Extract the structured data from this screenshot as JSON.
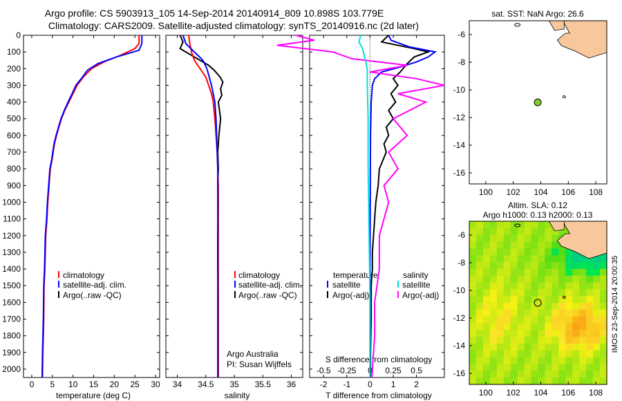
{
  "header": {
    "line1": "Argo profile: CS 5903913_105 14-Sep-2014 20140914_809 10.898S 103.779E",
    "line2": "Climatology: CARS2009. Satellite-adjusted climatology: synTS_20140916.nc (2d later)"
  },
  "colors": {
    "clim": "#ff0000",
    "sat": "#0000ff",
    "argo": "#000000",
    "sal_sat": "#00e0e0",
    "sal_argo": "#ff00ff",
    "land": "#f8c89c",
    "marker": "#7fd12a"
  },
  "chart_data": [
    {
      "type": "line",
      "id": "temperature",
      "xlabel": "temperature (deg C)",
      "ylabel": "",
      "xlim": [
        -2,
        31
      ],
      "ylim": [
        2050,
        0
      ],
      "xticks": [
        "0",
        "5",
        "10",
        "15",
        "20",
        "25",
        "30"
      ],
      "yticks": [
        "0",
        "100",
        "200",
        "300",
        "400",
        "500",
        "600",
        "700",
        "800",
        "900",
        "1000",
        "1100",
        "1200",
        "1300",
        "1400",
        "1500",
        "1600",
        "1700",
        "1800",
        "1900",
        "2000"
      ],
      "legend": [
        "climatology",
        "satellite-adj. clim.",
        "Argo(..raw -QC)"
      ],
      "series": [
        {
          "name": "climatology",
          "color": "#ff0000",
          "x": [
            26.0,
            26.0,
            25.0,
            21.5,
            17.5,
            14.5,
            12.5,
            11.0,
            10.0,
            9.0,
            8.0,
            7.2,
            6.6,
            6.0,
            5.5,
            5.2,
            4.9,
            4.5,
            4.2,
            3.9,
            3.7,
            3.4,
            3.2,
            3.0,
            2.9,
            2.8,
            2.7,
            2.6
          ],
          "y": [
            0,
            50,
            80,
            120,
            160,
            200,
            250,
            300,
            350,
            400,
            450,
            500,
            550,
            600,
            650,
            700,
            750,
            800,
            900,
            1000,
            1100,
            1200,
            1400,
            1500,
            1700,
            1800,
            1900,
            2050
          ]
        },
        {
          "name": "satellite-adj. clim.",
          "color": "#0000ff",
          "x": [
            26.7,
            26.7,
            26.0,
            20.5,
            16.0,
            13.5,
            12.0,
            10.7,
            9.8,
            8.8,
            7.9,
            7.1,
            6.5,
            5.9,
            5.4,
            5.1,
            4.8,
            4.4,
            4.1,
            3.8,
            3.6,
            3.3,
            3.1,
            2.9,
            2.8,
            2.7,
            2.6,
            2.5
          ],
          "y": [
            0,
            50,
            90,
            130,
            170,
            210,
            260,
            300,
            350,
            400,
            450,
            500,
            550,
            600,
            650,
            700,
            750,
            800,
            900,
            1000,
            1100,
            1200,
            1400,
            1500,
            1700,
            1800,
            1900,
            2050
          ]
        }
      ]
    },
    {
      "type": "line",
      "id": "salinity",
      "xlabel": "salinity",
      "xlim": [
        33.8,
        36.2
      ],
      "ylim": [
        2050,
        0
      ],
      "xticks": [
        "34",
        "34.5",
        "35",
        "35.5",
        "36"
      ],
      "legend": [
        "climatology",
        "satellite-adj. clim.",
        "Argo(..raw -QC)"
      ],
      "annotations": [
        "Argo Australia",
        "PI: Susan Wijffels"
      ],
      "series": [
        {
          "name": "climatology",
          "color": "#ff0000",
          "x": [
            34.2,
            34.22,
            34.25,
            34.3,
            34.4,
            34.5,
            34.55,
            34.6,
            34.63,
            34.66,
            34.68,
            34.7,
            34.71,
            34.72,
            34.72,
            34.72,
            34.72,
            34.72,
            34.72,
            34.72
          ],
          "y": [
            0,
            50,
            100,
            150,
            200,
            250,
            300,
            350,
            400,
            500,
            600,
            700,
            800,
            900,
            1000,
            1200,
            1400,
            1600,
            1800,
            2050
          ]
        },
        {
          "name": "satellite-adj. clim.",
          "color": "#0000ff",
          "x": [
            34.1,
            34.15,
            34.3,
            34.45,
            34.52,
            34.56,
            34.6,
            34.63,
            34.66,
            34.68,
            34.69,
            34.7,
            34.71,
            34.71,
            34.71,
            34.71,
            34.71,
            34.71,
            34.71,
            34.71
          ],
          "y": [
            0,
            50,
            100,
            150,
            200,
            250,
            300,
            350,
            400,
            500,
            600,
            700,
            800,
            900,
            1000,
            1200,
            1400,
            1600,
            1800,
            2050
          ]
        },
        {
          "name": "Argo(..raw -QC)",
          "color": "#000000",
          "x": [
            34.05,
            34.1,
            34.05,
            34.25,
            34.4,
            34.55,
            34.65,
            34.75,
            34.8,
            34.76,
            34.78,
            34.72,
            34.76,
            34.73,
            34.71,
            34.72,
            34.71,
            34.72,
            34.71,
            34.71,
            34.72,
            34.72,
            34.72
          ],
          "y": [
            0,
            40,
            80,
            120,
            150,
            180,
            210,
            250,
            280,
            320,
            360,
            400,
            500,
            600,
            700,
            800,
            900,
            1000,
            1200,
            1400,
            1600,
            1800,
            2050
          ]
        }
      ]
    },
    {
      "type": "line",
      "id": "difference",
      "xlabel": "T difference from climatology",
      "xlabel_top": "S difference from climatology",
      "xlim": [
        -2.6,
        3.2
      ],
      "ylim": [
        2050,
        0
      ],
      "xticks": [
        "-2",
        "-1",
        "0",
        "1",
        "2"
      ],
      "xticks_top": [
        "-0.5",
        "-0.25",
        "0",
        "0.25",
        "0.5"
      ],
      "legend_left_title": "temperature",
      "legend_right_title": "salinity",
      "legend": [
        "satellite",
        "Argo(-adj)",
        "satellite",
        "Argo(-adj)"
      ],
      "series": [
        {
          "name": "satellite",
          "color": "#0000ff",
          "x": [
            0.8,
            0.9,
            1.7,
            2.8,
            2.5,
            2.0,
            1.3,
            0.5,
            0.2,
            0.1,
            0.05,
            0.02,
            0.01,
            0,
            0
          ],
          "y": [
            0,
            30,
            70,
            100,
            130,
            160,
            190,
            220,
            260,
            300,
            400,
            600,
            900,
            1400,
            2050
          ]
        },
        {
          "name": "Argo(-adj)",
          "color": "#000000",
          "x": [
            0.8,
            0.5,
            1.9,
            2.5,
            1.9,
            1.6,
            1.3,
            1.0,
            1.2,
            0.9,
            1.1,
            0.8,
            1.0,
            0.7,
            0.8,
            0.6,
            0.7,
            0.4,
            0.35,
            0.25,
            0.2,
            0.15,
            0.1,
            0.1,
            0.05,
            0.05,
            0.02,
            0.02
          ],
          "y": [
            0,
            40,
            80,
            100,
            130,
            170,
            220,
            260,
            300,
            350,
            400,
            450,
            500,
            550,
            600,
            650,
            700,
            800,
            900,
            1000,
            1100,
            1200,
            1300,
            1400,
            1500,
            1700,
            1900,
            2050
          ]
        },
        {
          "name": "satellite",
          "color": "#00e0e0",
          "x": [
            -0.1,
            -0.12,
            -0.08,
            -0.05,
            -0.03,
            -0.03,
            -0.02,
            -0.02,
            -0.01,
            0,
            0
          ],
          "y": [
            0,
            40,
            80,
            150,
            200,
            300,
            500,
            800,
            1200,
            1600,
            2050
          ]
        },
        {
          "name": "Argo(-adj)",
          "color": "#ff00ff",
          "x": [
            -0.8,
            -0.6,
            -1.0,
            -0.4,
            -0.2,
            0.4,
            0.0,
            0.5,
            0.8,
            0.3,
            0.6,
            0.25,
            0.4,
            0.2,
            0.3,
            0.15,
            0.2,
            0.1,
            0.1,
            0.05,
            0.05,
            0.02
          ],
          "y": [
            0,
            30,
            60,
            100,
            140,
            180,
            220,
            260,
            300,
            350,
            400,
            500,
            600,
            700,
            800,
            900,
            1000,
            1200,
            1400,
            1600,
            1800,
            2050
          ]
        }
      ]
    },
    {
      "type": "map",
      "id": "sst-map",
      "title": "sat. SST: NaN Argo: 26.6",
      "xlim": [
        98.8,
        108.8
      ],
      "ylim": [
        -16.8,
        -5
      ],
      "xticks": [
        "100",
        "102",
        "104",
        "106",
        "108"
      ],
      "yticks": [
        "-6",
        "-8",
        "-10",
        "-12",
        "-14",
        "-16"
      ],
      "marker": {
        "lon": 103.779,
        "lat": -10.898
      }
    },
    {
      "type": "heatmap",
      "id": "sla-map",
      "title": "Altim. SLA: 0.12",
      "subtitle": "Argo h1000: 0.13 h2000: 0.13",
      "xlim": [
        98.8,
        108.8
      ],
      "ylim": [
        -16.8,
        -5
      ],
      "xticks": [
        "100",
        "102",
        "104",
        "106",
        "108"
      ],
      "yticks": [
        "-6",
        "-8",
        "-10",
        "-12",
        "-14",
        "-16"
      ],
      "marker": {
        "lon": 103.779,
        "lat": -10.898
      },
      "side_label": "IMOS 23-Sep-2014 20:00:35"
    }
  ]
}
